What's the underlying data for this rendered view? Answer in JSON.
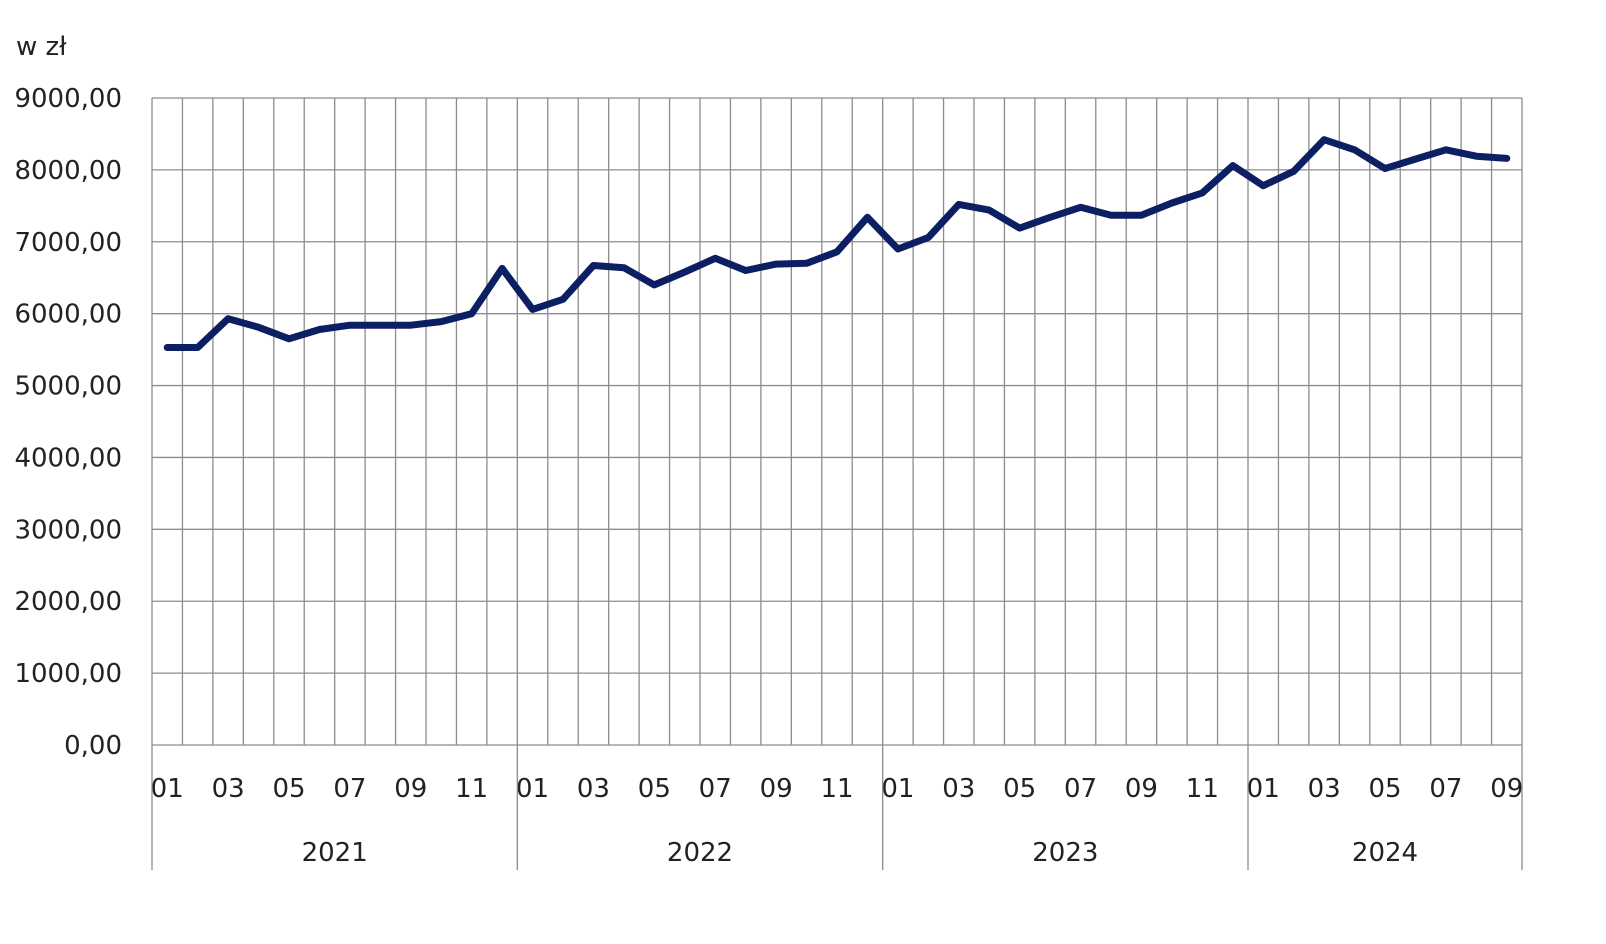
{
  "unit_label": "w zł",
  "colors": {
    "series": "#0c1f63",
    "grid": "#8c8c8c",
    "text": "#222222",
    "background": "#ffffff"
  },
  "chart_data": {
    "type": "line",
    "title": "",
    "xlabel": "",
    "ylabel": "w zł",
    "ylim": [
      0,
      9000
    ],
    "y_ticks": [
      "0,00",
      "1000,00",
      "2000,00",
      "3000,00",
      "4000,00",
      "5000,00",
      "6000,00",
      "7000,00",
      "8000,00",
      "9000,00"
    ],
    "grid": true,
    "legend": "none",
    "x_tick_labels": [
      "01",
      "03",
      "05",
      "07",
      "09",
      "11",
      "01",
      "03",
      "05",
      "07",
      "09",
      "11",
      "01",
      "03",
      "05",
      "07",
      "09",
      "11",
      "01",
      "03",
      "05",
      "07",
      "09"
    ],
    "years": [
      {
        "label": "2021",
        "months": 12
      },
      {
        "label": "2022",
        "months": 12
      },
      {
        "label": "2023",
        "months": 12
      },
      {
        "label": "2024",
        "months": 9
      }
    ],
    "x": [
      "2021-01",
      "2021-02",
      "2021-03",
      "2021-04",
      "2021-05",
      "2021-06",
      "2021-07",
      "2021-08",
      "2021-09",
      "2021-10",
      "2021-11",
      "2021-12",
      "2022-01",
      "2022-02",
      "2022-03",
      "2022-04",
      "2022-05",
      "2022-06",
      "2022-07",
      "2022-08",
      "2022-09",
      "2022-10",
      "2022-11",
      "2022-12",
      "2023-01",
      "2023-02",
      "2023-03",
      "2023-04",
      "2023-05",
      "2023-06",
      "2023-07",
      "2023-08",
      "2023-09",
      "2023-10",
      "2023-11",
      "2023-12",
      "2024-01",
      "2024-02",
      "2024-03",
      "2024-04",
      "2024-05",
      "2024-06",
      "2024-07",
      "2024-08",
      "2024-09"
    ],
    "series": [
      {
        "values": [
          5530,
          5530,
          5930,
          5810,
          5650,
          5780,
          5840,
          5840,
          5840,
          5890,
          6000,
          6630,
          6060,
          6200,
          6670,
          6640,
          6400,
          6580,
          6770,
          6600,
          6690,
          6700,
          6860,
          7340,
          6900,
          7060,
          7520,
          7440,
          7190,
          7340,
          7480,
          7370,
          7370,
          7540,
          7680,
          8060,
          7780,
          7980,
          8420,
          8280,
          8020,
          8150,
          8280,
          8190,
          8160
        ]
      }
    ]
  }
}
